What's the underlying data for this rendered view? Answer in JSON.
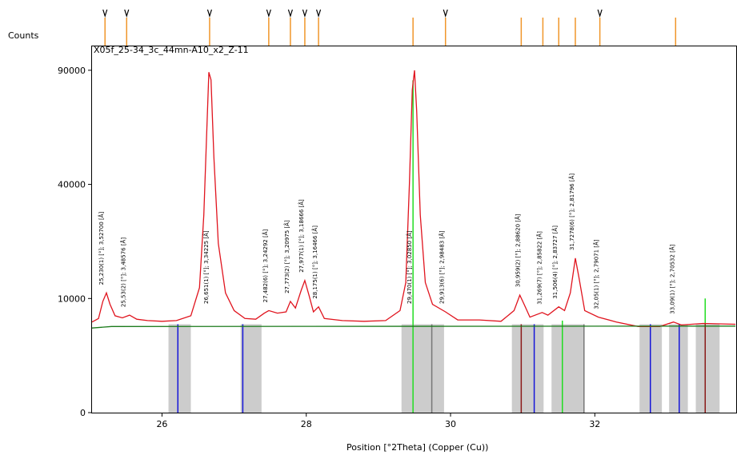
{
  "chart_data": {
    "type": "xrd",
    "title": "X05f_25-34_3c_44mn-A10_x2_Z-11",
    "y_label": "Counts",
    "x_label": "Position [°2Theta] (Copper (Cu))",
    "scale": "sqrt",
    "xlim": [
      25.03,
      33.96
    ],
    "ylim": [
      0,
      103000
    ],
    "xticks": [
      26,
      28,
      30,
      32
    ],
    "yticks": [
      0,
      10000,
      40000,
      90000
    ],
    "series": [
      {
        "color": "#e0141e",
        "x": [
          25.03,
          25.12,
          25.18,
          25.23,
          25.28,
          25.35,
          25.45,
          25.55,
          25.65,
          25.8,
          26.0,
          26.2,
          26.4,
          26.52,
          26.58,
          26.62,
          26.65,
          26.68,
          26.72,
          26.78,
          26.88,
          27.0,
          27.15,
          27.3,
          27.42,
          27.48,
          27.6,
          27.72,
          27.78,
          27.85,
          27.93,
          27.98,
          28.04,
          28.1,
          28.17,
          28.25,
          28.5,
          28.8,
          29.1,
          29.3,
          29.38,
          29.43,
          29.47,
          29.5,
          29.53,
          29.58,
          29.65,
          29.75,
          29.93,
          30.1,
          30.4,
          30.7,
          30.88,
          30.96,
          31.02,
          31.1,
          31.27,
          31.35,
          31.5,
          31.58,
          31.66,
          31.73,
          31.78,
          31.86,
          32.05,
          32.3,
          32.6,
          32.9,
          33.09,
          33.2,
          33.5,
          33.95
        ],
        "values": [
          6300,
          6800,
          9500,
          11000,
          9000,
          7200,
          6900,
          7300,
          6700,
          6500,
          6400,
          6500,
          7200,
          12000,
          30000,
          60000,
          89000,
          85000,
          50000,
          22000,
          11000,
          8000,
          6800,
          6700,
          7600,
          8000,
          7600,
          7800,
          9500,
          8400,
          11500,
          13400,
          10500,
          7800,
          8600,
          6800,
          6500,
          6400,
          6500,
          8000,
          13000,
          40000,
          80000,
          90000,
          70000,
          30000,
          13000,
          9000,
          7800,
          6600,
          6600,
          6400,
          8000,
          10600,
          9000,
          7000,
          7700,
          7300,
          8600,
          8000,
          11000,
          18300,
          14000,
          8000,
          7000,
          6300,
          5700,
          5700,
          6300,
          5900,
          6100,
          6000
        ]
      },
      {
        "color": "#1a7a1a",
        "x": [
          25.03,
          25.3,
          33.95
        ],
        "values": [
          5500,
          5700,
          5750
        ]
      }
    ],
    "bands": [
      [
        26.09,
        26.4
      ],
      [
        27.09,
        27.38
      ],
      [
        29.32,
        29.91
      ],
      [
        30.85,
        31.29
      ],
      [
        31.4,
        31.85
      ],
      [
        32.62,
        32.93
      ],
      [
        33.03,
        33.29
      ],
      [
        33.4,
        33.73
      ]
    ],
    "band_height": 6000,
    "band_color": "#cccccc",
    "reference_lines": [
      {
        "color": "#1515d8",
        "x": [
          26.22,
          27.12,
          31.16,
          32.77,
          33.17
        ],
        "values": [
          6000,
          6000,
          6000,
          6000,
          6000
        ]
      },
      {
        "color": "#22dd22",
        "x": [
          29.48,
          31.55,
          33.53
        ],
        "values": [
          84800,
          6500,
          10000
        ]
      },
      {
        "color": "#8b1a1a",
        "x": [
          30.98,
          33.53
        ],
        "values": [
          6000,
          6000
        ]
      },
      {
        "color": "#777777",
        "x": [
          29.74,
          31.85
        ],
        "values": [
          6000,
          6000
        ]
      }
    ],
    "peak_color": "#f0962a",
    "peaks": [
      25.21,
      25.51,
      26.66,
      27.48,
      27.78,
      27.98,
      28.17,
      29.48,
      29.93,
      30.98,
      31.28,
      31.5,
      31.73,
      32.07,
      33.12
    ],
    "markers": [
      25.21,
      25.51,
      26.66,
      27.48,
      27.78,
      27.98,
      28.17,
      29.93,
      32.07
    ],
    "peak_labels": [
      {
        "x": 25.21,
        "text": "25,230(1) [°]; 3,52700 [Å]"
      },
      {
        "x": 25.51,
        "text": "25,53(2) [°]; 3,48576 [Å]"
      },
      {
        "x": 26.66,
        "text": "26,651(1) [°]; 3,34225 [Å]"
      },
      {
        "x": 27.48,
        "text": "27,482(6) [°]; 3,24292 [Å]"
      },
      {
        "x": 27.78,
        "text": "27,773(2) [°]; 3,20975 [Å]"
      },
      {
        "x": 27.98,
        "text": "27,977(1) [°]; 3,18666 [Å]"
      },
      {
        "x": 28.17,
        "text": "28,175(1) [°]; 3,16466 [Å]"
      },
      {
        "x": 29.48,
        "text": "29,470(1) [°]; 3,02850 [Å]"
      },
      {
        "x": 29.93,
        "text": "29,913(6) [°]; 2,98483 [Å]"
      },
      {
        "x": 30.98,
        "text": "30,959(2) [°]; 2,88620 [Å]"
      },
      {
        "x": 31.28,
        "text": "31,269(7) [°]; 2,85822 [Å]"
      },
      {
        "x": 31.5,
        "text": "31,506(4) [°]; 2,83727 [Å]"
      },
      {
        "x": 31.73,
        "text": "31,7278(6) [°]; 2,81796 [Å]"
      },
      {
        "x": 32.07,
        "text": "32,05(1) [°]; 2,79071 [Å]"
      },
      {
        "x": 33.12,
        "text": "33,09(1) [°]; 2,70532 [Å]"
      }
    ]
  }
}
